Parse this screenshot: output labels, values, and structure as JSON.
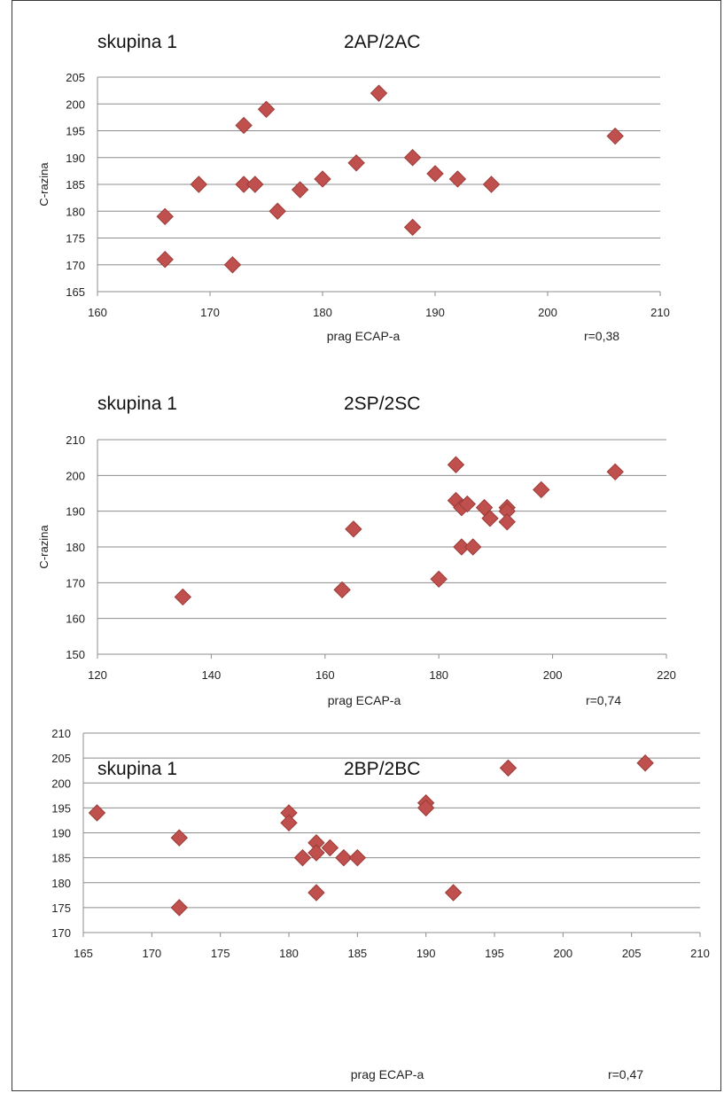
{
  "chart_data": [
    {
      "type": "scatter",
      "group": "skupina 1",
      "title": "2AP/2AC",
      "xlabel": "prag ECAP-a",
      "ylabel": "C-razina",
      "r_label": "r=0,38",
      "xlim": [
        160,
        210
      ],
      "ylim": [
        165,
        205
      ],
      "xticks": [
        160,
        170,
        180,
        190,
        200,
        210
      ],
      "yticks": [
        165,
        170,
        175,
        180,
        185,
        190,
        195,
        200,
        205
      ],
      "grid": true,
      "marker_color": "#c0504d",
      "series": [
        {
          "x": [
            166,
            166,
            169,
            172,
            173,
            173,
            174,
            175,
            176,
            178,
            180,
            183,
            185,
            188,
            188,
            190,
            192,
            195,
            206
          ],
          "y": [
            179,
            171,
            185,
            170,
            196,
            185,
            185,
            199,
            180,
            184,
            186,
            189,
            202,
            190,
            177,
            187,
            186,
            185,
            194
          ]
        }
      ]
    },
    {
      "type": "scatter",
      "group": "skupina 1",
      "title": "2SP/2SC",
      "xlabel": "prag ECAP-a",
      "ylabel": "C-razina",
      "r_label": "r=0,74",
      "xlim": [
        120,
        220
      ],
      "ylim": [
        150,
        210
      ],
      "xticks": [
        120,
        140,
        160,
        180,
        200,
        220
      ],
      "yticks": [
        150,
        160,
        170,
        180,
        190,
        200,
        210
      ],
      "grid": true,
      "marker_color": "#c0504d",
      "series": [
        {
          "x": [
            135,
            163,
            165,
            180,
            183,
            183,
            184,
            184,
            185,
            186,
            188,
            189,
            192,
            192,
            192,
            198,
            211
          ],
          "y": [
            166,
            168,
            185,
            171,
            203,
            193,
            191,
            180,
            192,
            180,
            191,
            188,
            191,
            190,
            187,
            196,
            201
          ]
        }
      ]
    },
    {
      "type": "scatter",
      "group": "skupina 1",
      "title": "2BP/2BC",
      "xlabel": "prag ECAP-a",
      "ylabel": "",
      "r_label": "r=0,47",
      "xlim": [
        165,
        210
      ],
      "ylim": [
        170,
        210
      ],
      "xticks": [
        165,
        170,
        175,
        180,
        185,
        190,
        195,
        200,
        205,
        210
      ],
      "yticks": [
        170,
        175,
        180,
        185,
        190,
        195,
        200,
        205,
        210
      ],
      "grid": true,
      "marker_color": "#c0504d",
      "series": [
        {
          "x": [
            166,
            172,
            172,
            180,
            180,
            181,
            182,
            182,
            182,
            183,
            184,
            185,
            190,
            190,
            192,
            196,
            206
          ],
          "y": [
            194,
            189,
            175,
            194,
            192,
            185,
            188,
            186,
            178,
            187,
            185,
            185,
            196,
            195,
            178,
            203,
            204
          ]
        }
      ]
    }
  ]
}
